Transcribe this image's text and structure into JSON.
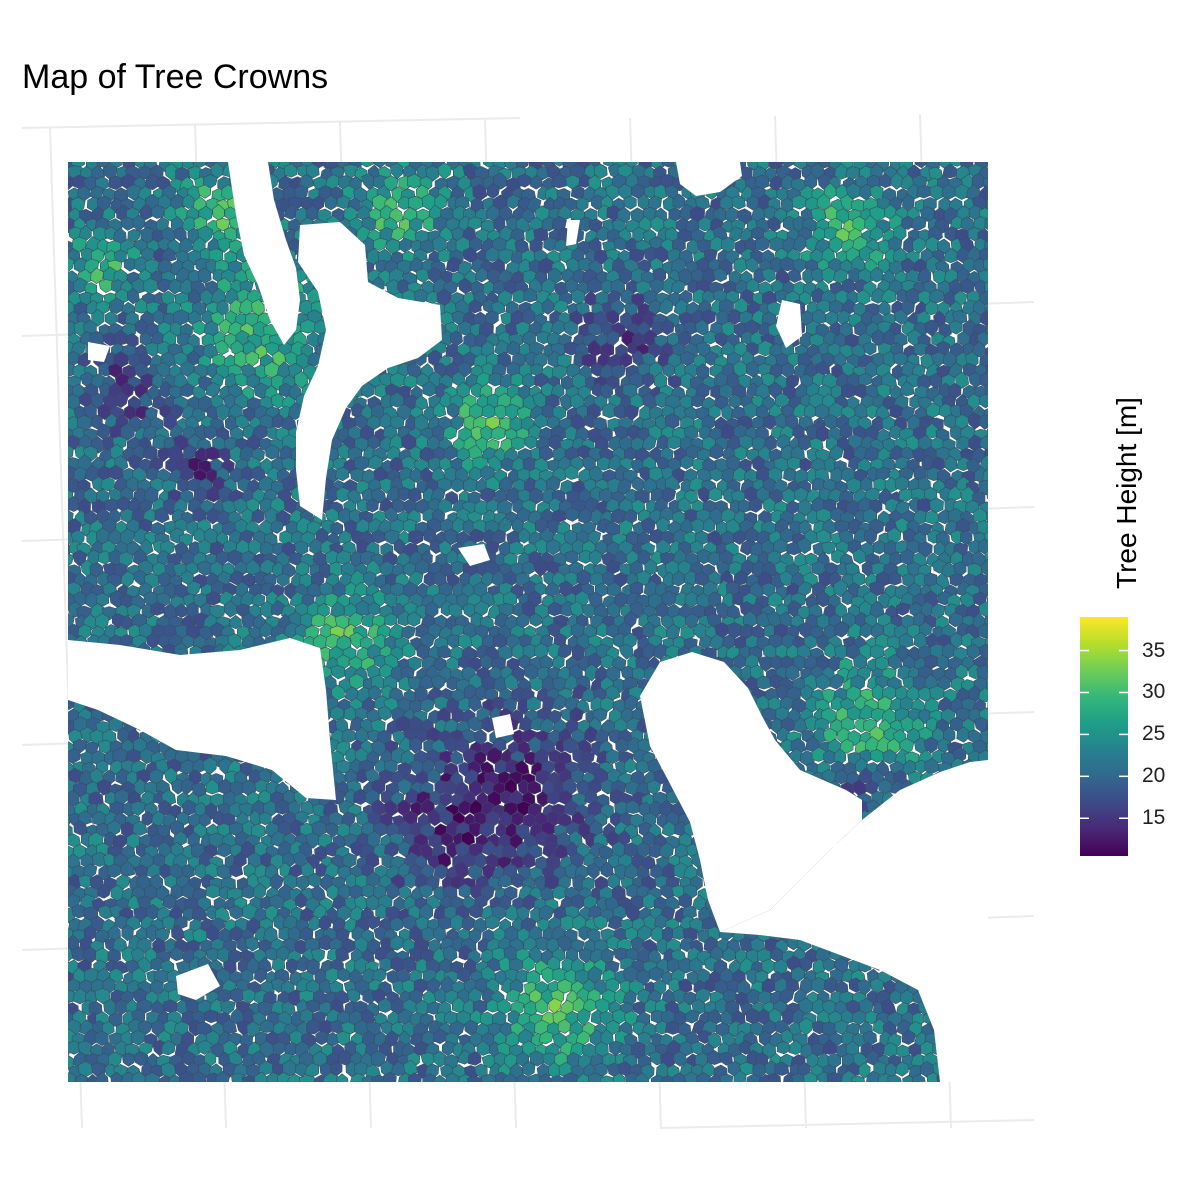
{
  "title": "Map of Tree Crowns",
  "legend": {
    "title": "Tree Height [m]",
    "min": 10.5,
    "max": 39,
    "ticks": [
      "15",
      "20",
      "25",
      "30",
      "35"
    ],
    "palette": [
      "#440154",
      "#482878",
      "#3e4a89",
      "#31688e",
      "#26828e",
      "#1f9e89",
      "#35b779",
      "#6ece58",
      "#b5de2b",
      "#fde725"
    ]
  },
  "map": {
    "polygon_edge_color": "#3a4f5c",
    "gaps": [
      "top-left channel",
      "central river",
      "west clearing",
      "east clearing"
    ]
  }
}
